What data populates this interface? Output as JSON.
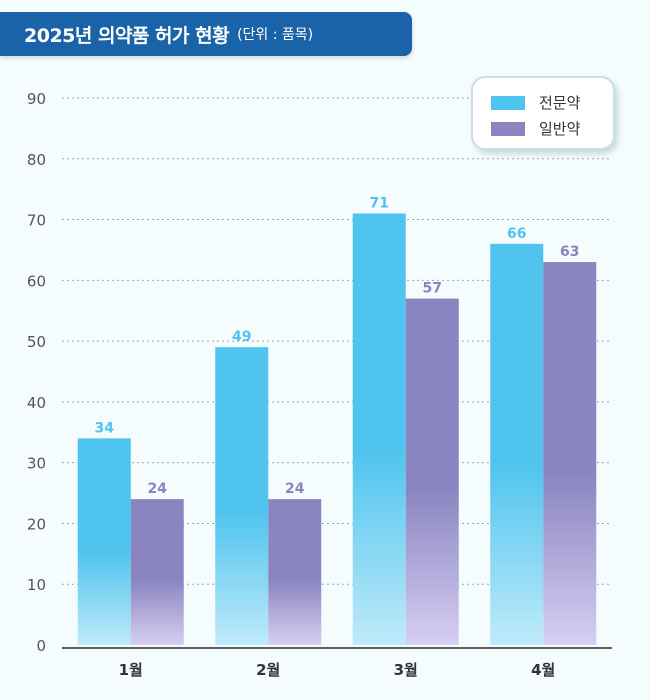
{
  "header": {
    "title": "2025년 의약품 허가 현황",
    "unit": "(단위 : 품목)"
  },
  "colors": {
    "prescription": "#4fc4ee",
    "otc": "#8a84c0",
    "axis_text": "#555555",
    "label_text": "#333333"
  },
  "chart_data": {
    "type": "bar",
    "categories": [
      "1월",
      "2월",
      "3월",
      "4월"
    ],
    "series": [
      {
        "name": "전문약",
        "values": [
          34,
          49,
          71,
          66
        ]
      },
      {
        "name": "일반약",
        "values": [
          24,
          24,
          57,
          63
        ]
      }
    ],
    "ylim": [
      0,
      90
    ],
    "yticks": [
      "0",
      "10",
      "20",
      "30",
      "40",
      "50",
      "60",
      "70",
      "80",
      "90"
    ],
    "grid": true,
    "legend_position": "top-right"
  }
}
